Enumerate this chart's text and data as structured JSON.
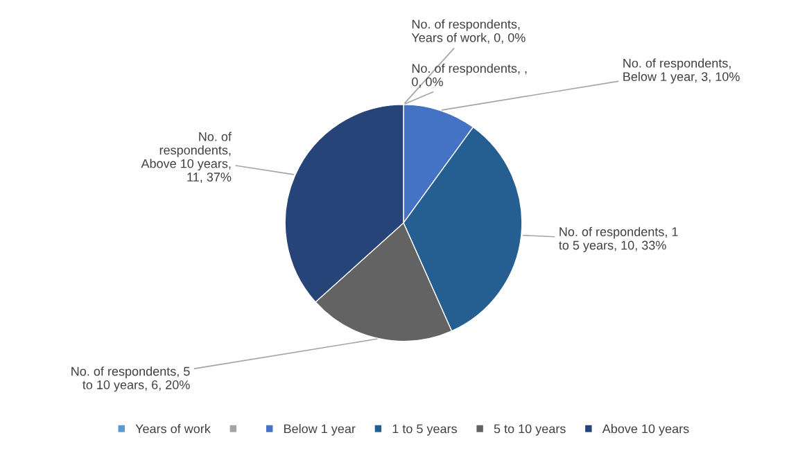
{
  "chart_data": {
    "type": "pie",
    "categories": [
      "Years of work",
      null,
      "Below 1 year",
      "1 to 5 years",
      "5 to 10 years",
      "Above 10 years"
    ],
    "values": [
      0,
      0,
      3,
      10,
      6,
      11
    ],
    "colors": [
      "#5b9bd5",
      "#a5a5a5",
      "#4472c4",
      "#255e91",
      "#636363",
      "#264478"
    ],
    "value_labels": [
      "No. of respondents,\nYears of work, 0, 0%",
      "No. of respondents, ,\n0, 0%",
      "No. of respondents,\nBelow 1 year, 3, 10%",
      "No. of respondents, 1\nto 5 years, 10, 33%",
      "No. of respondents, 5\nto 10 years, 6, 20%",
      "No. of\nrespondents,\nAbove 10 years,\n11, 37%"
    ],
    "legend": "bottom"
  }
}
